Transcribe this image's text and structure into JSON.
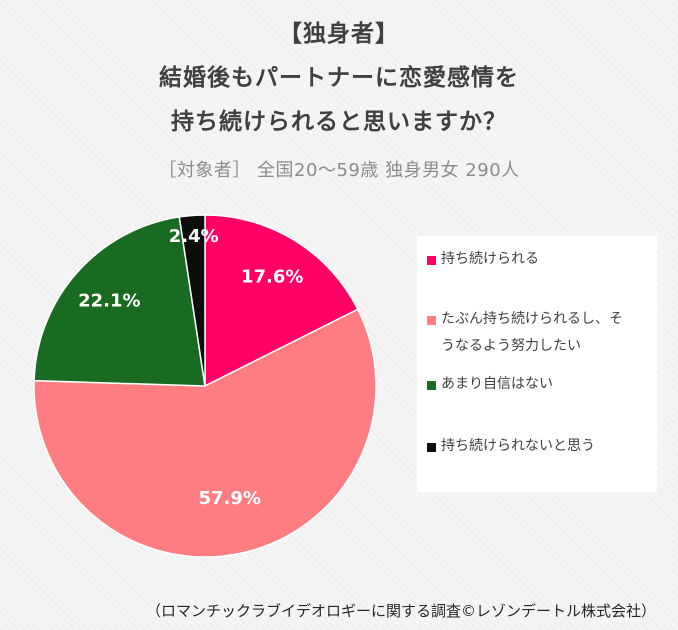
{
  "title_lines": [
    "【独身者】",
    "結婚後もパートナーに恋愛感情を",
    "持ち続けられると思いますか？"
  ],
  "subtitle": "［対象者］ 全国20～59歳 独身男女 290人",
  "source": "（ロマンチックラブイデオロギーに関する調査©レゾンデートル株式会社）",
  "chart_data": {
    "type": "pie",
    "title": "",
    "categories": [
      "持ち続けられる",
      "たぶん持ち続けられるし、そうなるよう努力したい",
      "あまり自信はない",
      "持ち続けられないと思う"
    ],
    "values": [
      17.6,
      57.9,
      22.1,
      2.4
    ],
    "value_labels": [
      "17.6%",
      "57.9%",
      "22.1%",
      "2.4%"
    ],
    "colors": [
      "#ff0066",
      "#ff7c80",
      "#1a6b22",
      "#0d0d0d"
    ],
    "label_colors": [
      "#ffffff",
      "#ffffff",
      "#ffffff",
      "#ffffff"
    ],
    "start": "12 o'clock",
    "direction": "clockwise",
    "legend_position": "right"
  },
  "legend": {
    "items": [
      {
        "lines": [
          "持ち続けられる"
        ]
      },
      {
        "lines": [
          "たぶん持ち続けられるし、そ",
          "うなるよう努力したい"
        ]
      },
      {
        "lines": [
          "あまり自信はない"
        ]
      },
      {
        "lines": [
          "持ち続けられないと思う"
        ]
      }
    ]
  }
}
